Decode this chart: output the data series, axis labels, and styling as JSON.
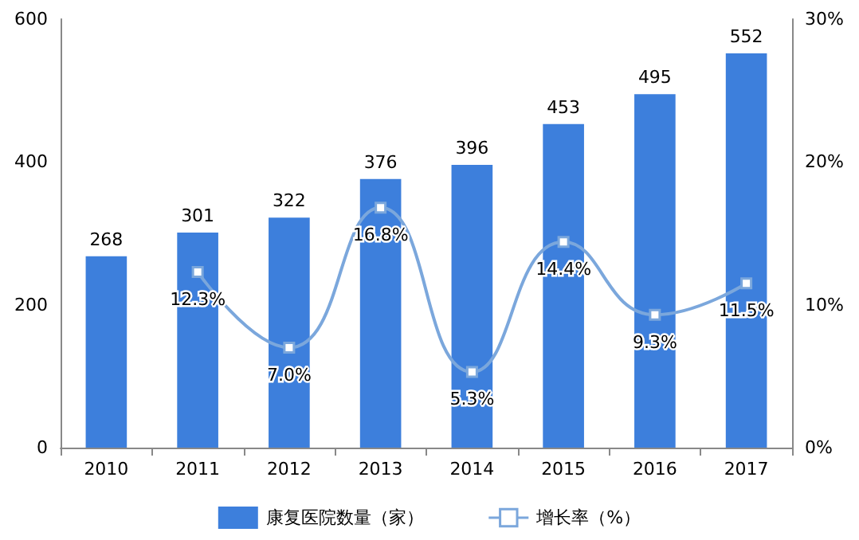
{
  "chart_data": {
    "type": "bar",
    "categories": [
      "2010",
      "2011",
      "2012",
      "2013",
      "2014",
      "2015",
      "2016",
      "2017"
    ],
    "series": [
      {
        "name": "康复医院数量（家）",
        "color": "#3d7fdc",
        "values": [
          268,
          301,
          322,
          376,
          396,
          453,
          495,
          552
        ],
        "value_labels": [
          "268",
          "301",
          "322",
          "376",
          "396",
          "453",
          "495",
          "552"
        ]
      },
      {
        "name": "增长率（%）",
        "type": "line",
        "axis": "y2",
        "color": "#7ba7dc",
        "marker": "square",
        "values": [
          null,
          12.3,
          7.0,
          16.8,
          5.3,
          14.4,
          9.3,
          11.5
        ],
        "value_labels": [
          null,
          "12.3%",
          "7.0%",
          "16.8%",
          "5.3%",
          "14.4%",
          "9.3%",
          "11.5%"
        ]
      }
    ],
    "ylim": [
      0,
      600
    ],
    "yticks": [
      0,
      200,
      400,
      600
    ],
    "y2lim": [
      0,
      30
    ],
    "y2ticks": [
      {
        "value": 0,
        "label": "0%"
      },
      {
        "value": 10,
        "label": "10%"
      },
      {
        "value": 20,
        "label": "20%"
      },
      {
        "value": 30,
        "label": "30%"
      }
    ],
    "grid": false,
    "legend": "bottom"
  }
}
